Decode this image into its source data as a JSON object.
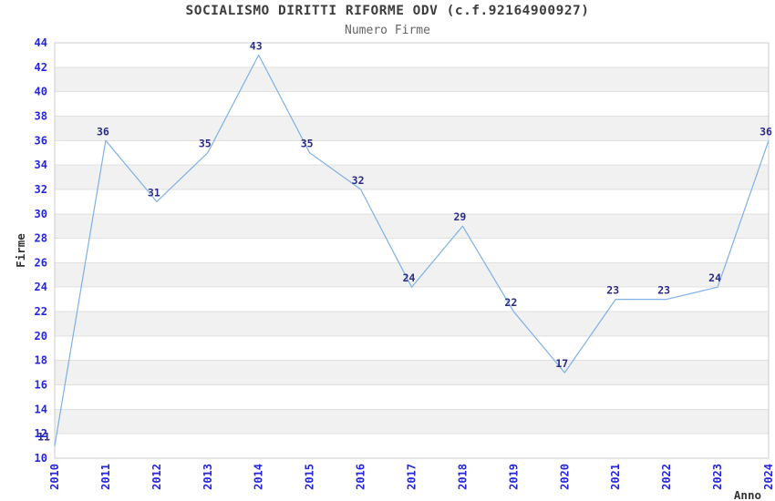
{
  "header": {
    "title": "SOCIALISMO DIRITTI RIFORME ODV (c.f.92164900927)",
    "subtitle": "Numero Firme"
  },
  "chart_data": {
    "type": "line",
    "title": "SOCIALISMO DIRITTI RIFORME ODV (c.f.92164900927)",
    "subtitle": "Numero Firme",
    "xlabel": "Anno",
    "ylabel": "Firme",
    "categories": [
      "2010",
      "2011",
      "2012",
      "2013",
      "2014",
      "2015",
      "2016",
      "2017",
      "2018",
      "2019",
      "2020",
      "2021",
      "2022",
      "2023",
      "2024"
    ],
    "values": [
      11,
      36,
      31,
      35,
      43,
      35,
      32,
      24,
      29,
      22,
      17,
      23,
      23,
      24,
      36
    ],
    "ylim": [
      10,
      44
    ],
    "ytick_step": 2,
    "legend": "none",
    "grid": "alternating-horizontal-bands",
    "colors": {
      "line": "#7fb0e6",
      "tick_label": "#2525dd",
      "data_label": "#2b2b8a",
      "band_fill": "#f1f1f1",
      "band_edge": "#e0e0e0",
      "plot_border": "#cccccc",
      "title": "#3d3d3d",
      "subtitle": "#666666",
      "axis_title": "#333333",
      "background": "#ffffff"
    }
  }
}
